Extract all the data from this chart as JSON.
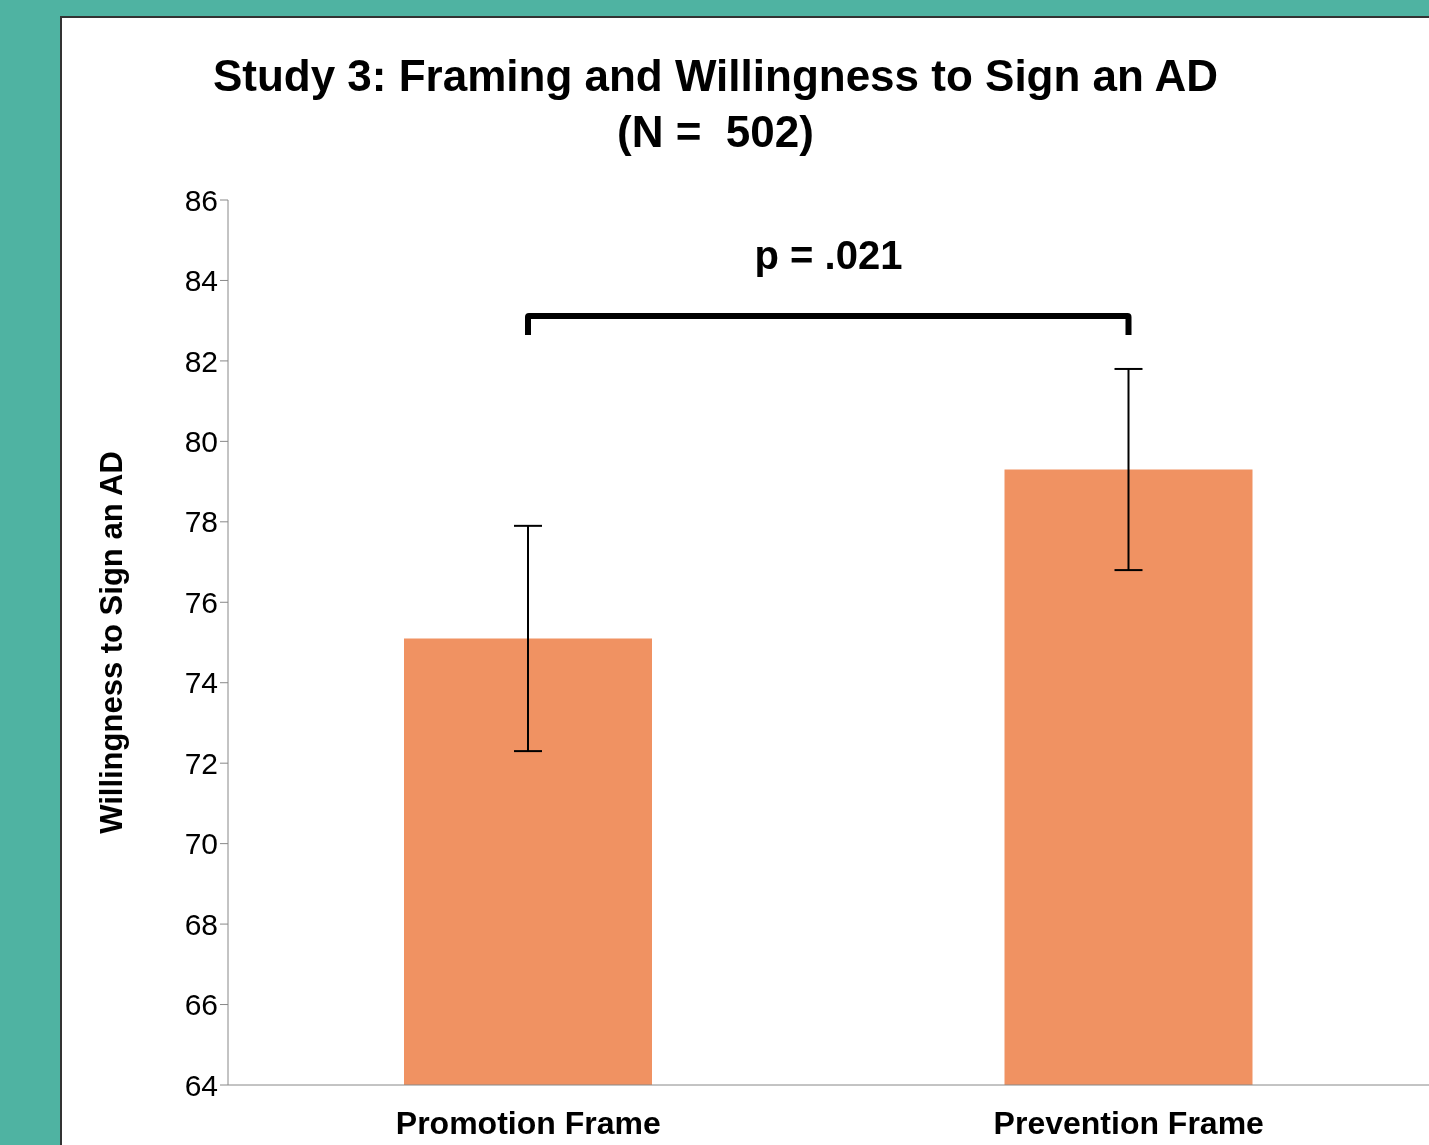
{
  "chart_data": {
    "type": "bar",
    "title": "Study 3: Framing and Willingness to Sign an AD\n(N =  502)",
    "ylabel": "Willingness to Sign an AD",
    "categories": [
      "Promotion Frame",
      "Prevention Frame"
    ],
    "values": [
      75.1,
      79.3
    ],
    "color": "#f09262",
    "errors": [
      [
        72.3,
        77.9
      ],
      [
        76.8,
        81.8
      ]
    ],
    "ylim": [
      64,
      86
    ],
    "yticks": [
      64,
      66,
      68,
      70,
      72,
      74,
      76,
      78,
      80,
      82,
      84,
      86
    ],
    "annotations": [
      "p = .021"
    ]
  }
}
